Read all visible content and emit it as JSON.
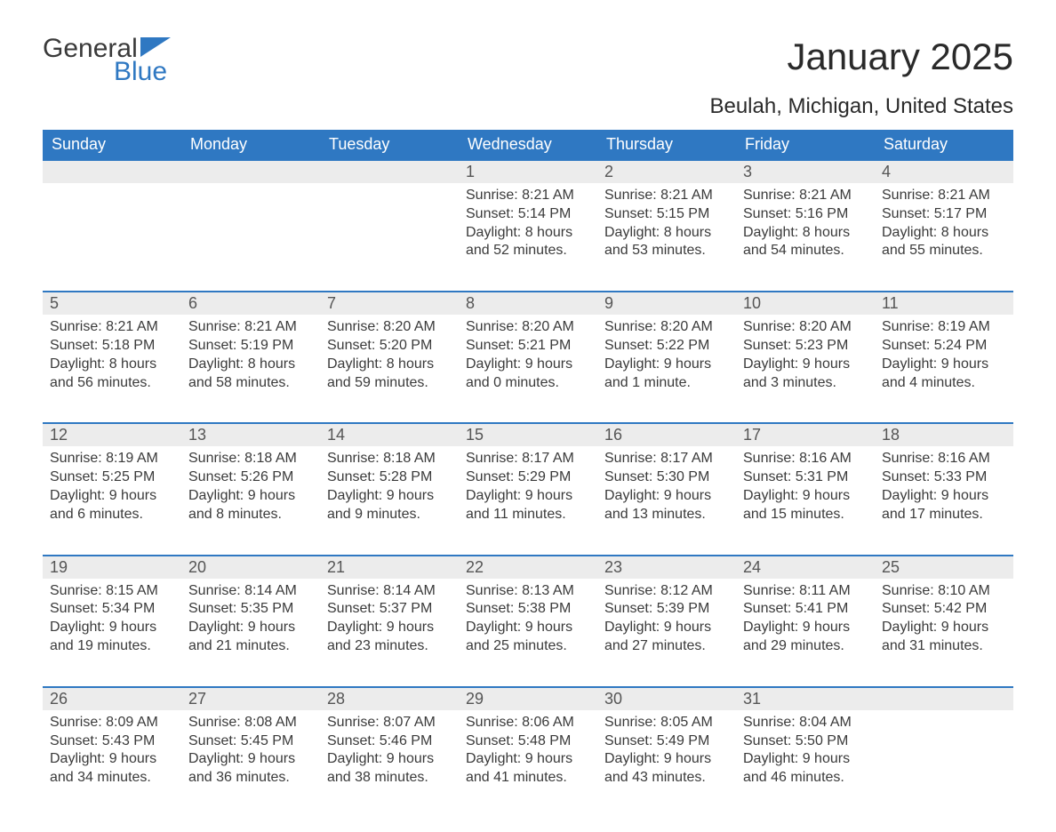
{
  "logo": {
    "general": "General",
    "blue": "Blue",
    "flag_color": "#2f78c2"
  },
  "title": "January 2025",
  "location": "Beulah, Michigan, United States",
  "colors": {
    "header_bg": "#2f78c2",
    "header_text": "#ffffff",
    "daynum_bg": "#ececec",
    "text": "#3a3a3a",
    "row_border": "#2f78c2"
  },
  "day_headers": [
    "Sunday",
    "Monday",
    "Tuesday",
    "Wednesday",
    "Thursday",
    "Friday",
    "Saturday"
  ],
  "weeks": [
    [
      null,
      null,
      null,
      {
        "n": "1",
        "sr": "Sunrise: 8:21 AM",
        "ss": "Sunset: 5:14 PM",
        "dl1": "Daylight: 8 hours",
        "dl2": "and 52 minutes."
      },
      {
        "n": "2",
        "sr": "Sunrise: 8:21 AM",
        "ss": "Sunset: 5:15 PM",
        "dl1": "Daylight: 8 hours",
        "dl2": "and 53 minutes."
      },
      {
        "n": "3",
        "sr": "Sunrise: 8:21 AM",
        "ss": "Sunset: 5:16 PM",
        "dl1": "Daylight: 8 hours",
        "dl2": "and 54 minutes."
      },
      {
        "n": "4",
        "sr": "Sunrise: 8:21 AM",
        "ss": "Sunset: 5:17 PM",
        "dl1": "Daylight: 8 hours",
        "dl2": "and 55 minutes."
      }
    ],
    [
      {
        "n": "5",
        "sr": "Sunrise: 8:21 AM",
        "ss": "Sunset: 5:18 PM",
        "dl1": "Daylight: 8 hours",
        "dl2": "and 56 minutes."
      },
      {
        "n": "6",
        "sr": "Sunrise: 8:21 AM",
        "ss": "Sunset: 5:19 PM",
        "dl1": "Daylight: 8 hours",
        "dl2": "and 58 minutes."
      },
      {
        "n": "7",
        "sr": "Sunrise: 8:20 AM",
        "ss": "Sunset: 5:20 PM",
        "dl1": "Daylight: 8 hours",
        "dl2": "and 59 minutes."
      },
      {
        "n": "8",
        "sr": "Sunrise: 8:20 AM",
        "ss": "Sunset: 5:21 PM",
        "dl1": "Daylight: 9 hours",
        "dl2": "and 0 minutes."
      },
      {
        "n": "9",
        "sr": "Sunrise: 8:20 AM",
        "ss": "Sunset: 5:22 PM",
        "dl1": "Daylight: 9 hours",
        "dl2": "and 1 minute."
      },
      {
        "n": "10",
        "sr": "Sunrise: 8:20 AM",
        "ss": "Sunset: 5:23 PM",
        "dl1": "Daylight: 9 hours",
        "dl2": "and 3 minutes."
      },
      {
        "n": "11",
        "sr": "Sunrise: 8:19 AM",
        "ss": "Sunset: 5:24 PM",
        "dl1": "Daylight: 9 hours",
        "dl2": "and 4 minutes."
      }
    ],
    [
      {
        "n": "12",
        "sr": "Sunrise: 8:19 AM",
        "ss": "Sunset: 5:25 PM",
        "dl1": "Daylight: 9 hours",
        "dl2": "and 6 minutes."
      },
      {
        "n": "13",
        "sr": "Sunrise: 8:18 AM",
        "ss": "Sunset: 5:26 PM",
        "dl1": "Daylight: 9 hours",
        "dl2": "and 8 minutes."
      },
      {
        "n": "14",
        "sr": "Sunrise: 8:18 AM",
        "ss": "Sunset: 5:28 PM",
        "dl1": "Daylight: 9 hours",
        "dl2": "and 9 minutes."
      },
      {
        "n": "15",
        "sr": "Sunrise: 8:17 AM",
        "ss": "Sunset: 5:29 PM",
        "dl1": "Daylight: 9 hours",
        "dl2": "and 11 minutes."
      },
      {
        "n": "16",
        "sr": "Sunrise: 8:17 AM",
        "ss": "Sunset: 5:30 PM",
        "dl1": "Daylight: 9 hours",
        "dl2": "and 13 minutes."
      },
      {
        "n": "17",
        "sr": "Sunrise: 8:16 AM",
        "ss": "Sunset: 5:31 PM",
        "dl1": "Daylight: 9 hours",
        "dl2": "and 15 minutes."
      },
      {
        "n": "18",
        "sr": "Sunrise: 8:16 AM",
        "ss": "Sunset: 5:33 PM",
        "dl1": "Daylight: 9 hours",
        "dl2": "and 17 minutes."
      }
    ],
    [
      {
        "n": "19",
        "sr": "Sunrise: 8:15 AM",
        "ss": "Sunset: 5:34 PM",
        "dl1": "Daylight: 9 hours",
        "dl2": "and 19 minutes."
      },
      {
        "n": "20",
        "sr": "Sunrise: 8:14 AM",
        "ss": "Sunset: 5:35 PM",
        "dl1": "Daylight: 9 hours",
        "dl2": "and 21 minutes."
      },
      {
        "n": "21",
        "sr": "Sunrise: 8:14 AM",
        "ss": "Sunset: 5:37 PM",
        "dl1": "Daylight: 9 hours",
        "dl2": "and 23 minutes."
      },
      {
        "n": "22",
        "sr": "Sunrise: 8:13 AM",
        "ss": "Sunset: 5:38 PM",
        "dl1": "Daylight: 9 hours",
        "dl2": "and 25 minutes."
      },
      {
        "n": "23",
        "sr": "Sunrise: 8:12 AM",
        "ss": "Sunset: 5:39 PM",
        "dl1": "Daylight: 9 hours",
        "dl2": "and 27 minutes."
      },
      {
        "n": "24",
        "sr": "Sunrise: 8:11 AM",
        "ss": "Sunset: 5:41 PM",
        "dl1": "Daylight: 9 hours",
        "dl2": "and 29 minutes."
      },
      {
        "n": "25",
        "sr": "Sunrise: 8:10 AM",
        "ss": "Sunset: 5:42 PM",
        "dl1": "Daylight: 9 hours",
        "dl2": "and 31 minutes."
      }
    ],
    [
      {
        "n": "26",
        "sr": "Sunrise: 8:09 AM",
        "ss": "Sunset: 5:43 PM",
        "dl1": "Daylight: 9 hours",
        "dl2": "and 34 minutes."
      },
      {
        "n": "27",
        "sr": "Sunrise: 8:08 AM",
        "ss": "Sunset: 5:45 PM",
        "dl1": "Daylight: 9 hours",
        "dl2": "and 36 minutes."
      },
      {
        "n": "28",
        "sr": "Sunrise: 8:07 AM",
        "ss": "Sunset: 5:46 PM",
        "dl1": "Daylight: 9 hours",
        "dl2": "and 38 minutes."
      },
      {
        "n": "29",
        "sr": "Sunrise: 8:06 AM",
        "ss": "Sunset: 5:48 PM",
        "dl1": "Daylight: 9 hours",
        "dl2": "and 41 minutes."
      },
      {
        "n": "30",
        "sr": "Sunrise: 8:05 AM",
        "ss": "Sunset: 5:49 PM",
        "dl1": "Daylight: 9 hours",
        "dl2": "and 43 minutes."
      },
      {
        "n": "31",
        "sr": "Sunrise: 8:04 AM",
        "ss": "Sunset: 5:50 PM",
        "dl1": "Daylight: 9 hours",
        "dl2": "and 46 minutes."
      },
      null
    ]
  ]
}
